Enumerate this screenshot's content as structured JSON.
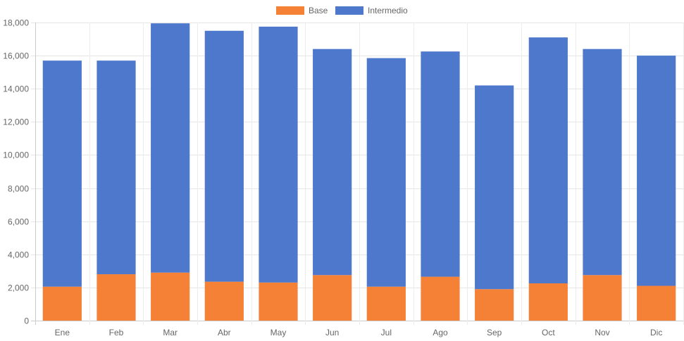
{
  "chart_data": {
    "type": "bar",
    "stacked": true,
    "categories": [
      "Ene",
      "Feb",
      "Mar",
      "Abr",
      "May",
      "Jun",
      "Jul",
      "Ago",
      "Sep",
      "Oct",
      "Nov",
      "Dic"
    ],
    "series": [
      {
        "name": "Base",
        "color": "#f58137",
        "values": [
          2050,
          2800,
          2900,
          2350,
          2300,
          2750,
          2050,
          2650,
          1900,
          2250,
          2750,
          2100
        ]
      },
      {
        "name": "Intermedio",
        "color": "#4e78cb",
        "values": [
          13650,
          12900,
          15050,
          15150,
          15450,
          13650,
          13800,
          13600,
          12300,
          14850,
          13650,
          13900
        ]
      }
    ],
    "ylim": [
      0,
      18000
    ],
    "yticks": [
      0,
      2000,
      4000,
      6000,
      8000,
      10000,
      12000,
      14000,
      16000,
      18000
    ],
    "ytick_labels": [
      "0",
      "2,000",
      "4,000",
      "6,000",
      "8,000",
      "10,000",
      "12,000",
      "14,000",
      "16,000",
      "18,000"
    ],
    "grid": true,
    "legend": "top-center"
  }
}
